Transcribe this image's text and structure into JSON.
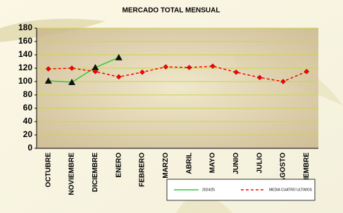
{
  "chart_data": {
    "type": "line",
    "title": "MERCADO TOTAL MENSUAL",
    "categories": [
      "OCTUBRE",
      "NOVIEMBRE",
      "DICIEMBRE",
      "ENERO",
      "FEBRERO",
      "MARZO",
      "ABRIL",
      "MAYO",
      "JUNIO",
      "JULIO",
      "AGOSTO",
      "SEPTIEMBRE"
    ],
    "series": [
      {
        "name": "2024/25",
        "color": "#33cc33",
        "line_style": "solid",
        "marker": "triangle",
        "values": [
          101,
          99,
          121,
          136,
          null,
          null,
          null,
          null,
          null,
          null,
          null,
          null
        ]
      },
      {
        "name": "MEDIA CUATRO ULTIMOS",
        "color": "#ff0000",
        "line_style": "dashed",
        "marker": "diamond",
        "values": [
          119,
          120,
          115,
          107,
          114,
          122,
          121,
          123,
          114,
          106,
          100,
          115
        ]
      }
    ],
    "ylim": [
      0,
      180
    ],
    "yticks": [
      0,
      20,
      40,
      60,
      80,
      100,
      120,
      140,
      160,
      180
    ],
    "grid": true,
    "legend": "bottom-right"
  }
}
